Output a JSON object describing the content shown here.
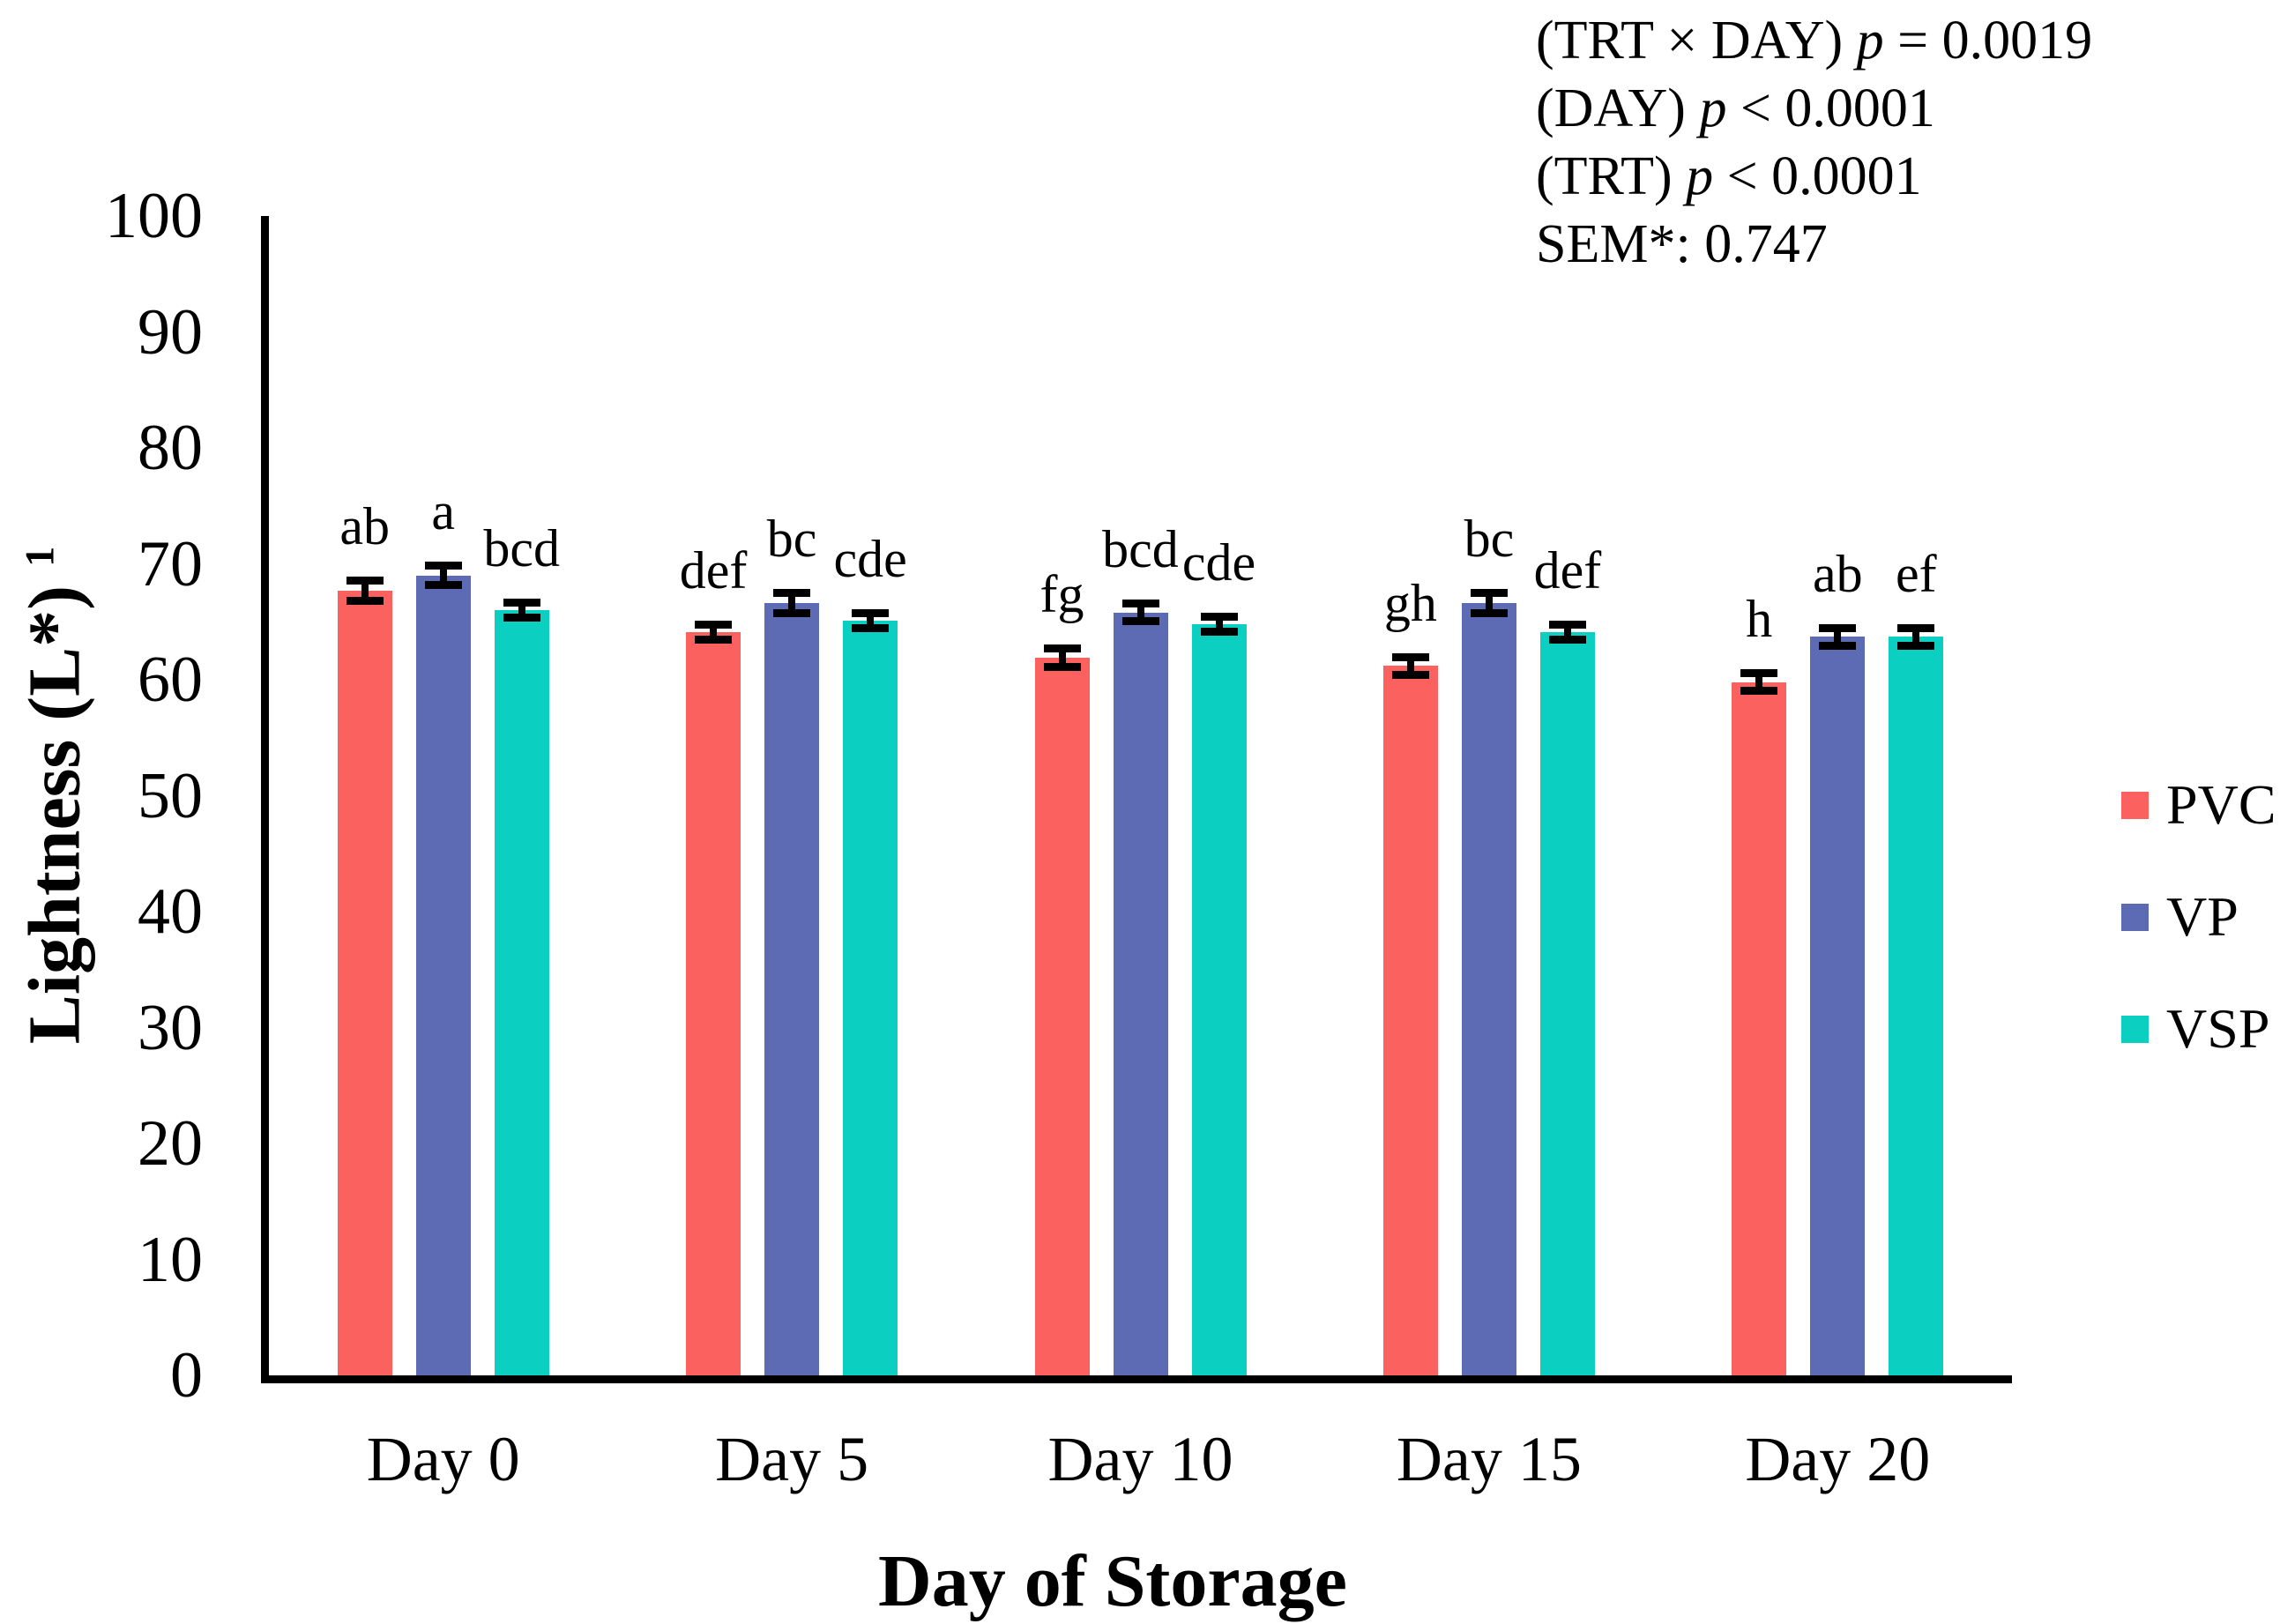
{
  "figure_title": "",
  "stats_annotation": {
    "lines": [
      {
        "segments": [
          {
            "t": "(TRT × DAY) "
          },
          {
            "t": "p",
            "italic": true
          },
          {
            "t": " = 0.0019"
          }
        ]
      },
      {
        "segments": [
          {
            "t": "(DAY) "
          },
          {
            "t": "p",
            "italic": true
          },
          {
            "t": " < 0.0001"
          }
        ]
      },
      {
        "segments": [
          {
            "t": "(TRT) "
          },
          {
            "t": "p",
            "italic": true
          },
          {
            "t": " < 0.0001"
          }
        ]
      },
      {
        "segments": [
          {
            "t": "SEM*: 0.747"
          }
        ]
      }
    ]
  },
  "chart_data": {
    "type": "bar",
    "title": "",
    "xlabel": "Day of Storage",
    "ylabel": "Lightness (L*)",
    "ylabel_superscript": "1",
    "ylim": [
      0,
      100
    ],
    "yticks": [
      0,
      10,
      20,
      30,
      40,
      50,
      60,
      70,
      80,
      90,
      100
    ],
    "grid": false,
    "error_bars": true,
    "legend_position": "right",
    "categories": [
      "Day 0",
      "Day 5",
      "Day 10",
      "Day 15",
      "Day 20"
    ],
    "series": [
      {
        "name": "PVC",
        "color": "#FB615E",
        "values": [
          67.7,
          64.1,
          61.9,
          61.2,
          59.8
        ],
        "errors": [
          0.9,
          0.7,
          0.8,
          0.8,
          0.8
        ],
        "letters": [
          "ab",
          "def",
          "fg",
          "gh",
          "h"
        ]
      },
      {
        "name": "VP",
        "color": "#5C6BB3",
        "values": [
          69.0,
          66.6,
          65.8,
          66.6,
          63.7
        ],
        "errors": [
          0.9,
          0.9,
          0.8,
          0.9,
          0.8
        ],
        "letters": [
          "a",
          "bc",
          "bcd",
          "bc",
          "ab"
        ]
      },
      {
        "name": "VSP",
        "color": "#0BCFC0",
        "values": [
          66.0,
          65.1,
          64.8,
          64.1,
          63.7
        ],
        "errors": [
          0.7,
          0.7,
          0.7,
          0.7,
          0.8
        ],
        "letters": [
          "bcd",
          "cde",
          "cde",
          "def",
          "ef"
        ]
      }
    ],
    "axis_color": "#000000",
    "text_color": "#000000"
  }
}
